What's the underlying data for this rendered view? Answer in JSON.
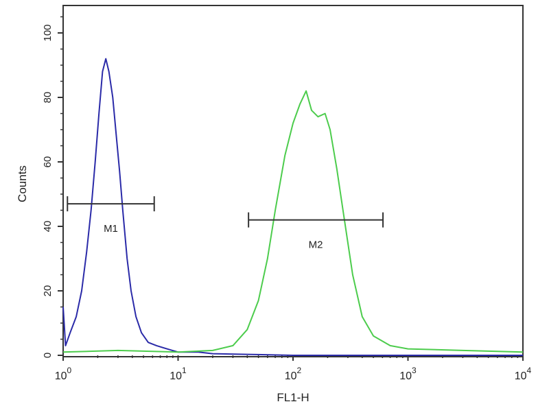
{
  "chart_data": {
    "type": "line",
    "xlabel": "FL1-H",
    "ylabel": "Counts",
    "x_scale": "log",
    "xlim": [
      1,
      10000
    ],
    "ylim": [
      0,
      108
    ],
    "grid": false,
    "x_ticks": [
      {
        "base": "10",
        "exp": "0",
        "value": 1
      },
      {
        "base": "10",
        "exp": "1",
        "value": 10
      },
      {
        "base": "10",
        "exp": "2",
        "value": 100
      },
      {
        "base": "10",
        "exp": "3",
        "value": 1000
      },
      {
        "base": "10",
        "exp": "4",
        "value": 10000
      }
    ],
    "y_ticks": [
      "0",
      "20",
      "40",
      "60",
      "80",
      "100"
    ],
    "series": [
      {
        "color": "#2a2aa8",
        "points": [
          [
            1,
            15
          ],
          [
            1.05,
            3
          ],
          [
            1.15,
            7
          ],
          [
            1.3,
            12
          ],
          [
            1.45,
            20
          ],
          [
            1.6,
            32
          ],
          [
            1.75,
            45
          ],
          [
            1.9,
            60
          ],
          [
            2.05,
            75
          ],
          [
            2.2,
            88
          ],
          [
            2.35,
            92
          ],
          [
            2.5,
            88
          ],
          [
            2.7,
            80
          ],
          [
            2.9,
            68
          ],
          [
            3.1,
            57
          ],
          [
            3.3,
            45
          ],
          [
            3.6,
            30
          ],
          [
            3.9,
            20
          ],
          [
            4.3,
            12
          ],
          [
            4.8,
            7
          ],
          [
            5.5,
            4
          ],
          [
            6.5,
            3
          ],
          [
            8,
            2
          ],
          [
            10,
            1
          ],
          [
            15,
            1
          ],
          [
            20,
            0.5
          ],
          [
            40,
            0.3
          ],
          [
            100,
            0
          ],
          [
            10000,
            0
          ]
        ]
      },
      {
        "color": "#4ccc4c",
        "points": [
          [
            1,
            1
          ],
          [
            3,
            1.5
          ],
          [
            10,
            1
          ],
          [
            20,
            1.5
          ],
          [
            30,
            3
          ],
          [
            40,
            8
          ],
          [
            50,
            17
          ],
          [
            60,
            30
          ],
          [
            70,
            45
          ],
          [
            85,
            62
          ],
          [
            100,
            72
          ],
          [
            115,
            78
          ],
          [
            130,
            82
          ],
          [
            145,
            76
          ],
          [
            165,
            74
          ],
          [
            190,
            75
          ],
          [
            210,
            70
          ],
          [
            240,
            58
          ],
          [
            280,
            42
          ],
          [
            330,
            25
          ],
          [
            400,
            12
          ],
          [
            500,
            6
          ],
          [
            700,
            3
          ],
          [
            1000,
            2
          ],
          [
            3000,
            1.5
          ],
          [
            10000,
            1
          ]
        ]
      }
    ],
    "markers": [
      {
        "label": "M1",
        "x_start": 1.09,
        "x_end": 6.2,
        "y": 47
      },
      {
        "label": "M2",
        "x_start": 41,
        "x_end": 606,
        "y": 42
      }
    ]
  }
}
